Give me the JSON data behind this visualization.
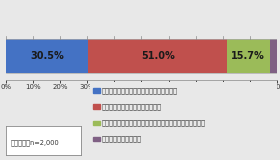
{
  "values": [
    30.5,
    51.0,
    15.7,
    2.9
  ],
  "colors": [
    "#4472c4",
    "#c0504d",
    "#9bbb59",
    "#7f6084"
  ],
  "labels": [
    "よく知っていて、ある程度の説明もできた",
    "詳しくないが、名前は知っていた",
    "なんとなく聞いたことがあったが詳しくはわからなかった",
    "聞いたこともなかった"
  ],
  "note": "単一回答：n=2,000",
  "bg_color": "#e8e8e8",
  "bar_text_color": "#1a1a1a",
  "tick_fontsize": 5.0,
  "legend_fontsize": 4.8,
  "note_fontsize": 4.8
}
